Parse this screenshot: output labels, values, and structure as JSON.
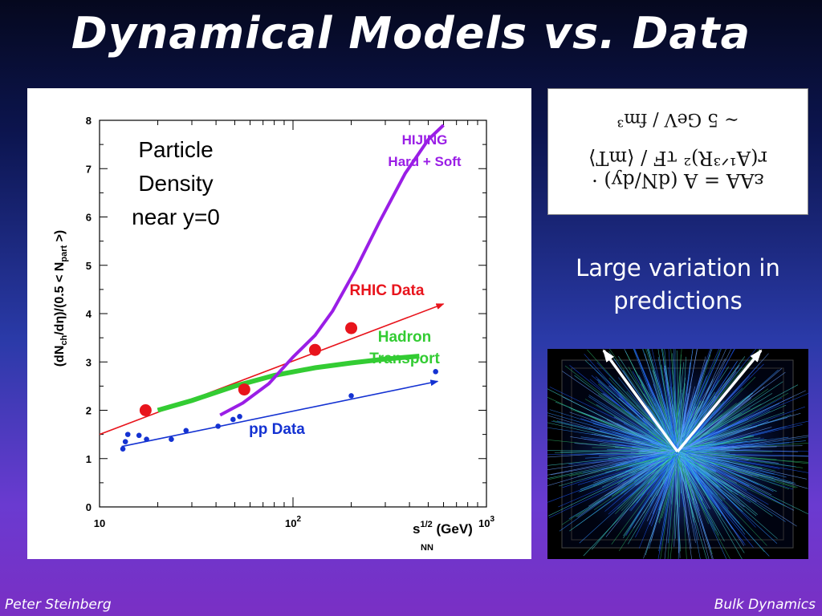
{
  "slide": {
    "title": "Dynamical Models vs. Data",
    "note_lines": [
      "Large variation in",
      "predictions"
    ],
    "footer_left": "Peter Steinberg",
    "footer_right": "Bulk Dynamics"
  },
  "formula": {
    "line1": "~ 5 GeV / fm³",
    "line2": "εAA = A (dN/dy) · r(A¹ᐟ³R)² τF / ⟨mT⟩"
  },
  "chart_data": {
    "type": "scatter",
    "xscale": "log",
    "xlim": [
      10,
      1000
    ],
    "ylim": [
      0,
      8
    ],
    "x_tick_labels": [
      "10",
      "10²",
      "10³"
    ],
    "y_tick_labels": [
      "0",
      "1",
      "2",
      "3",
      "4",
      "5",
      "6",
      "7",
      "8"
    ],
    "ylabel": "(dNch/dη)/(0.5 < Npart >)",
    "xlabel": "s^1/2 NN (GeV)",
    "annotation": [
      "Particle",
      "Density",
      "near y=0"
    ],
    "colors": {
      "rhic": "#e8141c",
      "pp": "#1432d2",
      "hijing": "#9a1ee6",
      "hadron": "#33cc33"
    },
    "series": [
      {
        "name": "RHIC Data",
        "kind": "points",
        "points": [
          [
            17.3,
            2.0
          ],
          [
            56,
            2.43
          ],
          [
            130,
            3.25
          ],
          [
            200,
            3.7
          ]
        ]
      },
      {
        "name": "pp Data",
        "kind": "points",
        "points": [
          [
            13.2,
            1.2
          ],
          [
            13.6,
            1.35
          ],
          [
            14,
            1.5
          ],
          [
            16,
            1.48
          ],
          [
            17.5,
            1.4
          ],
          [
            23.5,
            1.4
          ],
          [
            28,
            1.58
          ],
          [
            41,
            1.67
          ],
          [
            49,
            1.81
          ],
          [
            53,
            1.87
          ],
          [
            200,
            2.3
          ],
          [
            546,
            2.8
          ]
        ]
      },
      {
        "name": "RHIC fit",
        "kind": "arrow",
        "points": [
          [
            10,
            1.5
          ],
          [
            600,
            4.2
          ]
        ]
      },
      {
        "name": "pp fit",
        "kind": "arrow",
        "points": [
          [
            13,
            1.25
          ],
          [
            560,
            2.6
          ]
        ]
      },
      {
        "name": "HIJING Hard + Soft",
        "kind": "curve",
        "points": [
          [
            42,
            1.9
          ],
          [
            55,
            2.15
          ],
          [
            75,
            2.55
          ],
          [
            100,
            3.1
          ],
          [
            130,
            3.55
          ],
          [
            160,
            4.05
          ],
          [
            210,
            4.9
          ],
          [
            280,
            5.9
          ],
          [
            380,
            6.9
          ],
          [
            500,
            7.6
          ],
          [
            600,
            7.9
          ]
        ]
      },
      {
        "name": "Hadron Transport",
        "kind": "curve",
        "points": [
          [
            20,
            2.0
          ],
          [
            30,
            2.2
          ],
          [
            50,
            2.5
          ],
          [
            80,
            2.72
          ],
          [
            130,
            2.88
          ],
          [
            200,
            2.98
          ],
          [
            300,
            3.06
          ],
          [
            450,
            3.12
          ]
        ]
      }
    ],
    "labels": [
      {
        "text": [
          "HIJING",
          "Hard + Soft"
        ],
        "color": "#9a1ee6"
      },
      {
        "text": [
          "RHIC Data"
        ],
        "color": "#e8141c"
      },
      {
        "text": [
          "Hadron",
          "Transport"
        ],
        "color": "#33cc33"
      },
      {
        "text": [
          "pp Data"
        ],
        "color": "#1432d2"
      }
    ]
  }
}
